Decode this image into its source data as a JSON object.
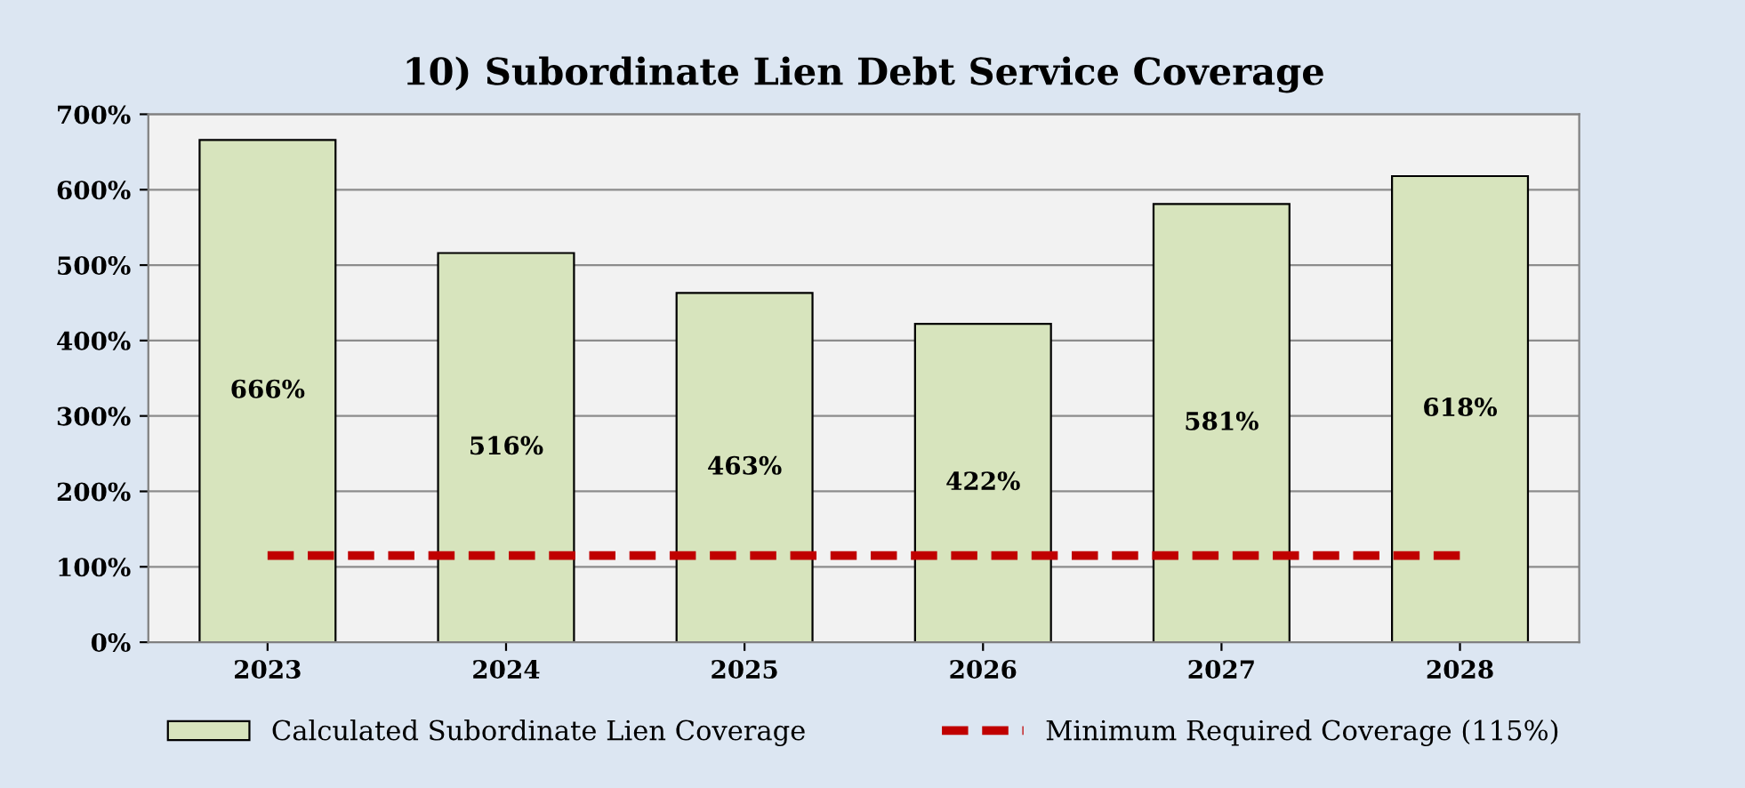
{
  "chart_data": {
    "type": "bar",
    "title": "10) Subordinate Lien Debt Service Coverage",
    "categories": [
      "2023",
      "2024",
      "2025",
      "2026",
      "2027",
      "2028"
    ],
    "series": [
      {
        "name": "Calculated Subordinate Lien Coverage",
        "color": "#d7e4bd",
        "values": [
          666,
          516,
          463,
          422,
          581,
          618
        ],
        "value_labels": [
          "666%",
          "516%",
          "463%",
          "422%",
          "581%",
          "618%"
        ]
      },
      {
        "name": "Minimum Required Coverage (115%)",
        "type": "line",
        "color": "#c00000",
        "line_style": "dashed",
        "marker": "none",
        "values": [
          115,
          115,
          115,
          115,
          115,
          115
        ]
      }
    ],
    "ylim": [
      0,
      700
    ],
    "yticks": [
      {
        "value": 0,
        "label": "0%"
      },
      {
        "value": 100,
        "label": "100%"
      },
      {
        "value": 200,
        "label": "200%"
      },
      {
        "value": 300,
        "label": "300%"
      },
      {
        "value": 400,
        "label": "400%"
      },
      {
        "value": 500,
        "label": "500%"
      },
      {
        "value": 600,
        "label": "600%"
      },
      {
        "value": 700,
        "label": "700%"
      }
    ],
    "grid": "y",
    "legend": "bottom"
  }
}
